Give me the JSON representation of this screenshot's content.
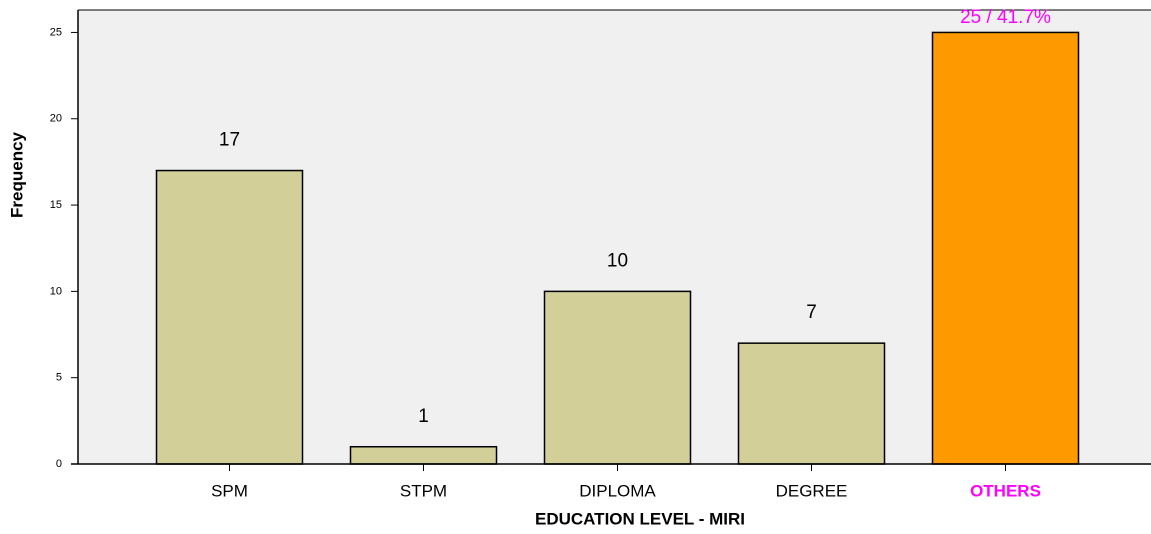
{
  "chart_data": {
    "type": "bar",
    "x_label": "EDUCATION LEVEL - MIRI",
    "y_label": "Frequency",
    "categories": [
      "SPM",
      "STPM",
      "DIPLOMA",
      "DEGREE",
      "OTHERS"
    ],
    "values": [
      17,
      1,
      10,
      7,
      25
    ],
    "value_labels": [
      "17",
      "1",
      "10",
      "7",
      "25 / 41.7%"
    ],
    "colors": [
      "#d3cf99",
      "#d3cf99",
      "#d3cf99",
      "#d3cf99",
      "#ff9900"
    ],
    "label_colors": [
      "#000000",
      "#000000",
      "#000000",
      "#000000",
      "#ff00ff"
    ],
    "ylim": [
      0,
      26.3
    ],
    "yticks": [
      0,
      5,
      10,
      15,
      20,
      25
    ],
    "background": "#f0f0f0"
  }
}
